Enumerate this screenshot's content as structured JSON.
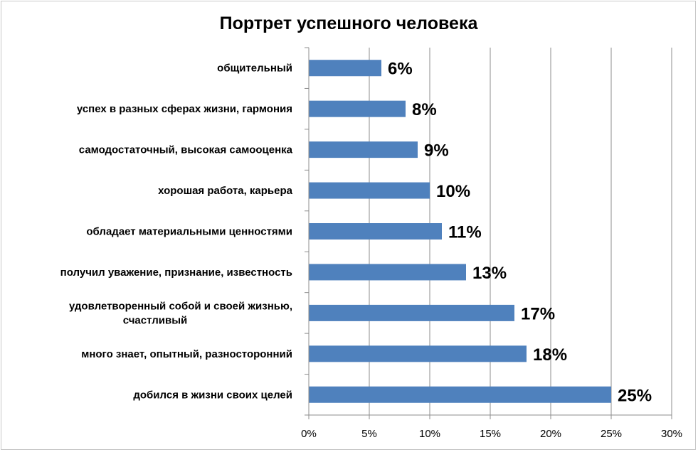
{
  "chart_data": {
    "type": "bar",
    "orientation": "horizontal",
    "title": "Портрет успешного человека",
    "categories": [
      "общительный",
      "успех в разных сферах жизни, гармония",
      "самодостаточный,  высокая самооценка",
      "хорошая работа,  карьера",
      "обладает материальными  ценностями",
      "получил уважение, признание,  известность",
      [
        "удовлетворенный  собой и своей жизнью,",
        "счастливый"
      ],
      "много знает, опытный,  разносторонний",
      "добился в жизни своих целей"
    ],
    "values": [
      6,
      8,
      9,
      10,
      11,
      13,
      17,
      18,
      25
    ],
    "data_labels": [
      "6%",
      "8%",
      "9%",
      "10%",
      "11%",
      "13%",
      "17%",
      "18%",
      "25%"
    ],
    "xlim": [
      0,
      30
    ],
    "x_ticks": [
      "0%",
      "5%",
      "10%",
      "15%",
      "20%",
      "25%",
      "30%"
    ],
    "grid": true,
    "bar_color": "#4f81bd",
    "gridline_color": "#8c8c8c"
  }
}
